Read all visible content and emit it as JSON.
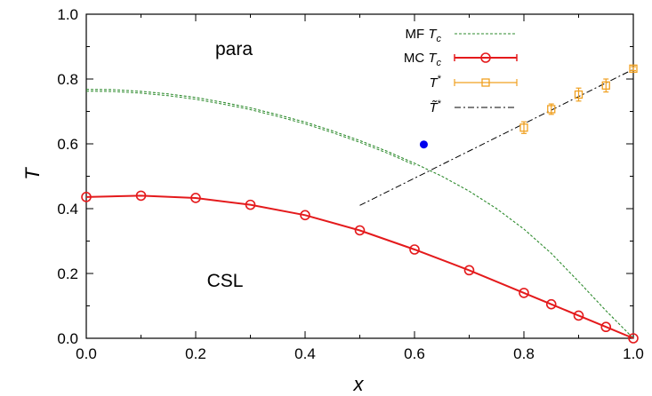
{
  "chart_data": {
    "type": "line",
    "xlabel": "x",
    "ylabel": "T",
    "xlim": [
      0.0,
      1.0
    ],
    "ylim": [
      0.0,
      1.0
    ],
    "x_ticks": [
      "0.0",
      "0.2",
      "0.4",
      "0.6",
      "0.8",
      "1.0"
    ],
    "y_ticks": [
      "0.0",
      "0.2",
      "0.4",
      "0.6",
      "0.8",
      "1.0"
    ],
    "grid": false,
    "legend_position": "top-right",
    "annotations": [
      {
        "text": "para",
        "x": 0.27,
        "y": 0.9
      },
      {
        "text": "CSL",
        "x": 0.27,
        "y": 0.18
      }
    ],
    "series": [
      {
        "name": "MF T_c",
        "legend": {
          "main": "MF ",
          "var": "T",
          "sub": "c"
        },
        "style": "dashed",
        "color": "#2e8b2e",
        "x": [
          0.0,
          0.05,
          0.1,
          0.15,
          0.2,
          0.25,
          0.3,
          0.35,
          0.4,
          0.45,
          0.5,
          0.55,
          0.6,
          0.65,
          0.7,
          0.75,
          0.8,
          0.85,
          0.9,
          0.95,
          1.0
        ],
        "y": [
          0.768,
          0.767,
          0.762,
          0.754,
          0.743,
          0.728,
          0.711,
          0.69,
          0.667,
          0.64,
          0.61,
          0.577,
          0.54,
          0.5,
          0.454,
          0.4,
          0.337,
          0.262,
          0.175,
          0.085,
          0.0
        ]
      },
      {
        "name": "MC T_c",
        "legend": {
          "main": "MC ",
          "var": "T",
          "sub": "c"
        },
        "style": "solid-markers",
        "color": "#e41a1c",
        "x": [
          0.0,
          0.1,
          0.2,
          0.3,
          0.4,
          0.5,
          0.6,
          0.7,
          0.8,
          0.85,
          0.9,
          0.95,
          1.0
        ],
        "y": [
          0.436,
          0.44,
          0.433,
          0.412,
          0.38,
          0.333,
          0.274,
          0.21,
          0.14,
          0.105,
          0.07,
          0.035,
          0.0
        ]
      },
      {
        "name": "T*",
        "legend": {
          "main": "",
          "var": "T",
          "sup": "*"
        },
        "style": "squares-errorbars",
        "color": "#f0a020",
        "x": [
          0.8,
          0.85,
          0.9,
          0.95,
          1.0
        ],
        "y": [
          0.65,
          0.707,
          0.752,
          0.78,
          0.832
        ],
        "err": [
          0.018,
          0.016,
          0.02,
          0.02,
          0.006
        ]
      },
      {
        "name": "T̃*",
        "legend": {
          "main": "",
          "var": "T̃",
          "sup": "*"
        },
        "style": "dash-dot",
        "color": "#000000",
        "x": [
          0.5,
          1.0
        ],
        "y": [
          0.41,
          0.83
        ]
      }
    ],
    "special_point": {
      "x": 0.617,
      "y": 0.598,
      "color": "#0000ee"
    }
  }
}
